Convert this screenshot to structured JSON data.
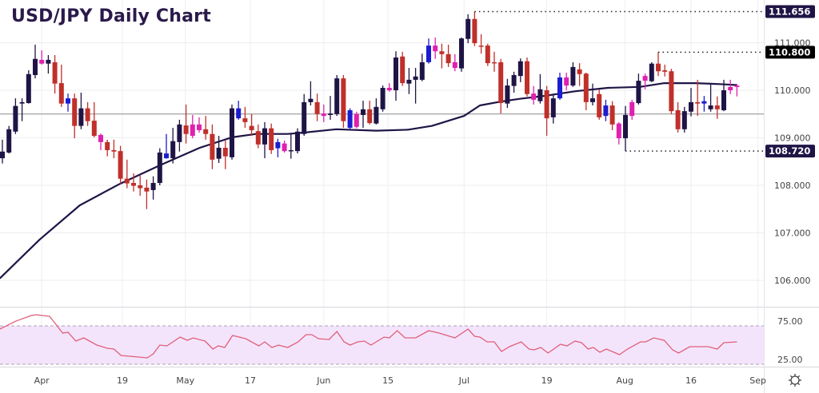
{
  "title": "USD/JPY Daily Chart",
  "settings_icon": "gear-icon",
  "colors": {
    "up": "#1f1446",
    "down": "#c0302a",
    "pink": "#e020b0",
    "blue": "#1c1cd0",
    "ma": "#1f1446",
    "rsi": "#e0607a",
    "rsi_band": "#f3e4fb"
  },
  "chart_data": {
    "type": "candlestick",
    "title": "USD/JPY Daily Chart",
    "ylim": [
      105.6,
      112.0
    ],
    "y_ticks": [
      "106.000",
      "107.000",
      "108.000",
      "109.000",
      "110.000",
      "111.000"
    ],
    "y_tick_values": [
      106,
      107,
      108,
      109,
      110,
      111
    ],
    "reference_line": 109.5,
    "x_ticks": [
      {
        "label": "Apr",
        "i": 6
      },
      {
        "label": "19",
        "i": 18.3
      },
      {
        "label": "May",
        "i": 27.9
      },
      {
        "label": "17",
        "i": 37.8
      },
      {
        "label": "Jun",
        "i": 49
      },
      {
        "label": "15",
        "i": 58.8
      },
      {
        "label": "Jul",
        "i": 70.4
      },
      {
        "label": "19",
        "i": 83
      },
      {
        "label": "Aug",
        "i": 94.9
      },
      {
        "label": "16",
        "i": 105
      },
      {
        "label": "Sep",
        "i": 115.2
      }
    ],
    "levels": [
      {
        "label": "111.656",
        "value": 111.656,
        "from_i": 72,
        "style": "dark"
      },
      {
        "label": "110.800",
        "value": 110.8,
        "from_i": 100,
        "style": "black"
      },
      {
        "label": "108.720",
        "value": 108.72,
        "from_i": 95,
        "style": "dark"
      }
    ],
    "candles_fields": [
      "open",
      "high",
      "low",
      "close",
      "color"
    ],
    "candles": [
      [
        108.57,
        108.96,
        108.46,
        108.71,
        "d"
      ],
      [
        108.69,
        109.25,
        108.67,
        109.18,
        "d"
      ],
      [
        109.13,
        109.83,
        109.08,
        109.67,
        "d"
      ],
      [
        109.72,
        109.83,
        109.35,
        109.75,
        "d"
      ],
      [
        109.73,
        110.42,
        109.72,
        110.34,
        "d"
      ],
      [
        110.32,
        110.96,
        110.25,
        110.66,
        "d"
      ],
      [
        110.64,
        110.84,
        110.54,
        110.56,
        "p"
      ],
      [
        110.56,
        110.74,
        110.35,
        110.64,
        "d"
      ],
      [
        110.59,
        110.74,
        109.93,
        110.14,
        "r"
      ],
      [
        110.15,
        110.54,
        109.65,
        109.72,
        "r"
      ],
      [
        109.72,
        109.93,
        109.55,
        109.83,
        "b"
      ],
      [
        109.83,
        109.93,
        108.99,
        109.25,
        "r"
      ],
      [
        109.25,
        109.95,
        109.18,
        109.62,
        "d"
      ],
      [
        109.62,
        109.75,
        109.25,
        109.35,
        "r"
      ],
      [
        109.36,
        109.75,
        109.01,
        109.04,
        "r"
      ],
      [
        109.06,
        109.09,
        108.74,
        108.91,
        "p"
      ],
      [
        108.91,
        108.96,
        108.61,
        108.74,
        "r"
      ],
      [
        108.74,
        108.96,
        108.57,
        108.71,
        "r"
      ],
      [
        108.72,
        108.83,
        108.02,
        108.14,
        "r"
      ],
      [
        108.14,
        108.54,
        107.94,
        108.04,
        "r"
      ],
      [
        108.05,
        108.25,
        107.87,
        107.99,
        "r"
      ],
      [
        108.0,
        108.22,
        107.78,
        107.94,
        "r"
      ],
      [
        107.95,
        108.12,
        107.5,
        107.87,
        "r"
      ],
      [
        107.9,
        108.19,
        107.7,
        108.05,
        "d"
      ],
      [
        108.05,
        108.78,
        108.0,
        108.69,
        "d"
      ],
      [
        108.57,
        109.08,
        108.56,
        108.67,
        "b"
      ],
      [
        108.57,
        109.21,
        108.46,
        108.93,
        "d"
      ],
      [
        108.91,
        109.38,
        108.71,
        109.28,
        "d"
      ],
      [
        109.26,
        109.7,
        108.88,
        109.08,
        "r"
      ],
      [
        109.28,
        109.48,
        108.99,
        109.04,
        "p"
      ],
      [
        109.28,
        109.43,
        109.11,
        109.16,
        "p"
      ],
      [
        109.18,
        109.46,
        108.96,
        109.08,
        "r"
      ],
      [
        109.08,
        109.28,
        108.34,
        108.54,
        "r"
      ],
      [
        108.56,
        109.04,
        108.47,
        108.79,
        "d"
      ],
      [
        108.79,
        108.94,
        108.34,
        108.61,
        "r"
      ],
      [
        108.59,
        109.7,
        108.54,
        109.62,
        "d"
      ],
      [
        109.41,
        109.78,
        109.38,
        109.62,
        "b"
      ],
      [
        109.41,
        109.65,
        109.21,
        109.33,
        "r"
      ],
      [
        109.25,
        109.5,
        109.04,
        109.16,
        "r"
      ],
      [
        109.14,
        109.28,
        108.78,
        108.86,
        "r"
      ],
      [
        108.86,
        109.33,
        108.57,
        109.2,
        "d"
      ],
      [
        109.2,
        109.3,
        108.66,
        108.74,
        "r"
      ],
      [
        108.78,
        108.98,
        108.59,
        108.91,
        "b"
      ],
      [
        108.88,
        108.94,
        108.69,
        108.72,
        "p"
      ],
      [
        108.72,
        109.08,
        108.56,
        108.74,
        "d"
      ],
      [
        108.72,
        109.2,
        108.67,
        109.13,
        "d"
      ],
      [
        109.08,
        109.92,
        109.04,
        109.75,
        "d"
      ],
      [
        109.75,
        110.19,
        109.68,
        109.82,
        "d"
      ],
      [
        109.75,
        109.93,
        109.35,
        109.5,
        "r"
      ],
      [
        109.51,
        109.7,
        109.33,
        109.46,
        "p"
      ],
      [
        109.48,
        109.88,
        109.38,
        109.51,
        "d"
      ],
      [
        109.5,
        110.32,
        109.46,
        110.25,
        "d"
      ],
      [
        110.25,
        110.32,
        109.21,
        109.35,
        "r"
      ],
      [
        109.21,
        109.62,
        109.18,
        109.58,
        "b"
      ],
      [
        109.5,
        109.55,
        109.2,
        109.23,
        "p"
      ],
      [
        109.48,
        109.78,
        109.21,
        109.6,
        "d"
      ],
      [
        109.6,
        109.78,
        109.28,
        109.31,
        "r"
      ],
      [
        109.3,
        109.83,
        109.28,
        109.65,
        "d"
      ],
      [
        109.6,
        110.1,
        109.55,
        110.05,
        "d"
      ],
      [
        110.05,
        110.15,
        109.97,
        110.0,
        "p"
      ],
      [
        110.0,
        110.82,
        109.78,
        110.69,
        "d"
      ],
      [
        110.71,
        110.81,
        110.09,
        110.15,
        "r"
      ],
      [
        110.14,
        110.47,
        109.92,
        110.22,
        "d"
      ],
      [
        110.22,
        110.47,
        109.72,
        110.29,
        "d"
      ],
      [
        110.22,
        110.77,
        110.19,
        110.59,
        "d"
      ],
      [
        110.59,
        111.09,
        110.56,
        110.94,
        "b"
      ],
      [
        110.94,
        111.11,
        110.66,
        110.82,
        "p"
      ],
      [
        110.82,
        110.98,
        110.46,
        110.76,
        "r"
      ],
      [
        110.76,
        110.96,
        110.49,
        110.57,
        "r"
      ],
      [
        110.59,
        110.76,
        110.4,
        110.47,
        "p"
      ],
      [
        110.46,
        111.11,
        110.39,
        111.09,
        "d"
      ],
      [
        111.08,
        111.6,
        110.99,
        111.5,
        "d"
      ],
      [
        111.5,
        111.656,
        110.93,
        110.99,
        "r"
      ],
      [
        110.94,
        111.18,
        110.77,
        110.93,
        "r"
      ],
      [
        110.94,
        110.98,
        110.51,
        110.57,
        "r"
      ],
      [
        110.59,
        110.81,
        110.39,
        110.57,
        "r"
      ],
      [
        110.59,
        110.66,
        109.51,
        109.73,
        "r"
      ],
      [
        109.72,
        110.24,
        109.63,
        110.1,
        "d"
      ],
      [
        110.09,
        110.39,
        109.95,
        110.32,
        "d"
      ],
      [
        110.3,
        110.67,
        110.17,
        110.61,
        "d"
      ],
      [
        110.61,
        110.69,
        109.87,
        109.92,
        "r"
      ],
      [
        109.93,
        110.09,
        109.7,
        109.8,
        "p"
      ],
      [
        109.77,
        110.34,
        109.72,
        110.02,
        "d"
      ],
      [
        110.0,
        110.09,
        109.04,
        109.41,
        "r"
      ],
      [
        109.43,
        109.92,
        109.3,
        109.83,
        "d"
      ],
      [
        109.83,
        110.37,
        109.8,
        110.27,
        "b"
      ],
      [
        110.27,
        110.37,
        110.0,
        110.1,
        "p"
      ],
      [
        110.1,
        110.59,
        110.07,
        110.49,
        "d"
      ],
      [
        110.44,
        110.57,
        110.09,
        110.34,
        "r"
      ],
      [
        110.35,
        110.37,
        109.58,
        109.75,
        "r"
      ],
      [
        109.75,
        110.14,
        109.68,
        109.83,
        "d"
      ],
      [
        109.92,
        110.02,
        109.38,
        109.43,
        "r"
      ],
      [
        109.46,
        109.8,
        109.35,
        109.68,
        "b"
      ],
      [
        109.68,
        109.77,
        109.16,
        109.28,
        "r"
      ],
      [
        109.3,
        109.33,
        108.86,
        108.99,
        "p"
      ],
      [
        108.99,
        109.67,
        108.72,
        109.48,
        "d"
      ],
      [
        109.75,
        109.8,
        109.38,
        109.46,
        "p"
      ],
      [
        109.73,
        110.35,
        109.7,
        110.2,
        "d"
      ],
      [
        110.3,
        110.35,
        110.02,
        110.2,
        "p"
      ],
      [
        110.19,
        110.59,
        110.17,
        110.56,
        "d"
      ],
      [
        110.56,
        110.8,
        110.3,
        110.4,
        "r"
      ],
      [
        110.42,
        110.54,
        110.29,
        110.39,
        "r"
      ],
      [
        110.4,
        110.45,
        109.5,
        109.56,
        "r"
      ],
      [
        109.58,
        109.75,
        109.11,
        109.18,
        "r"
      ],
      [
        109.18,
        109.65,
        109.11,
        109.56,
        "d"
      ],
      [
        109.55,
        110.05,
        109.45,
        109.75,
        "d"
      ],
      [
        109.75,
        110.22,
        109.46,
        109.72,
        "r"
      ],
      [
        109.72,
        109.88,
        109.55,
        109.77,
        "b"
      ],
      [
        109.6,
        110.14,
        109.55,
        109.68,
        "d"
      ],
      [
        109.68,
        109.87,
        109.4,
        109.6,
        "r"
      ],
      [
        109.58,
        110.22,
        109.56,
        110.0,
        "d"
      ],
      [
        110.07,
        110.22,
        109.92,
        110.0,
        "p"
      ],
      [
        110.1,
        110.13,
        109.87,
        110.07,
        "p"
      ]
    ],
    "moving_average": [
      [
        -0.4,
        106.04
      ],
      [
        5.7,
        106.86
      ],
      [
        11.8,
        107.58
      ],
      [
        17.9,
        108.03
      ],
      [
        24,
        108.42
      ],
      [
        30.1,
        108.79
      ],
      [
        35,
        109.01
      ],
      [
        38.7,
        109.08
      ],
      [
        43.5,
        109.08
      ],
      [
        46,
        109.11
      ],
      [
        50.9,
        109.18
      ],
      [
        57,
        109.15
      ],
      [
        61.8,
        109.17
      ],
      [
        65.5,
        109.25
      ],
      [
        70.4,
        109.46
      ],
      [
        72.8,
        109.68
      ],
      [
        75.9,
        109.76
      ],
      [
        78.9,
        109.82
      ],
      [
        82.6,
        109.88
      ],
      [
        87.4,
        109.98
      ],
      [
        92.3,
        110.05
      ],
      [
        97.2,
        110.07
      ],
      [
        100.9,
        110.15
      ],
      [
        105.7,
        110.15
      ],
      [
        109.4,
        110.13
      ],
      [
        112,
        110.11
      ]
    ],
    "rsi": {
      "ylim": [
        20,
        95
      ],
      "ticks": [
        "75.00",
        "25.00"
      ],
      "tick_values": [
        75,
        25
      ],
      "points": [
        [
          -0.4,
          70.8
        ],
        [
          2.0,
          81
        ],
        [
          4.4,
          88.5
        ],
        [
          5.2,
          89.6
        ],
        [
          7.2,
          87.5
        ],
        [
          9.2,
          65.6
        ],
        [
          10,
          66.7
        ],
        [
          11.2,
          55.2
        ],
        [
          12.4,
          59.4
        ],
        [
          14.4,
          50
        ],
        [
          16,
          45.8
        ],
        [
          17,
          44.8
        ],
        [
          18.1,
          36.5
        ],
        [
          22.1,
          33.3
        ],
        [
          23,
          38.5
        ],
        [
          24,
          50
        ],
        [
          25.1,
          49
        ],
        [
          27.1,
          60.4
        ],
        [
          28.2,
          56.3
        ],
        [
          29.1,
          59.4
        ],
        [
          30.9,
          55.2
        ],
        [
          32.1,
          44.8
        ],
        [
          32.9,
          49
        ],
        [
          33.9,
          46.9
        ],
        [
          35.1,
          62.5
        ],
        [
          37.1,
          58.3
        ],
        [
          39.1,
          49
        ],
        [
          40,
          54.2
        ],
        [
          41.1,
          46.9
        ],
        [
          42.1,
          50
        ],
        [
          43.5,
          46.9
        ],
        [
          45.1,
          54.2
        ],
        [
          46.3,
          63.5
        ],
        [
          47.2,
          63.5
        ],
        [
          48.2,
          58.3
        ],
        [
          49.8,
          57.3
        ],
        [
          51,
          67.7
        ],
        [
          52.1,
          54.2
        ],
        [
          53,
          50
        ],
        [
          54.2,
          54.2
        ],
        [
          55.2,
          55.2
        ],
        [
          56.2,
          50
        ],
        [
          58.2,
          60.4
        ],
        [
          59,
          59.4
        ],
        [
          60.2,
          68.8
        ],
        [
          61.4,
          59.4
        ],
        [
          63,
          59.4
        ],
        [
          65,
          68.8
        ],
        [
          66.6,
          65.6
        ],
        [
          69,
          59.4
        ],
        [
          71,
          70.8
        ],
        [
          72,
          61.5
        ],
        [
          72.8,
          60.4
        ],
        [
          73.9,
          54.2
        ],
        [
          75,
          54.2
        ],
        [
          76.1,
          41.7
        ],
        [
          77.3,
          47.9
        ],
        [
          79.1,
          54.2
        ],
        [
          80.3,
          44.8
        ],
        [
          81.1,
          43.8
        ],
        [
          82.1,
          46.9
        ],
        [
          83.2,
          39.6
        ],
        [
          85.1,
          51
        ],
        [
          86.1,
          49
        ],
        [
          87.3,
          55.2
        ],
        [
          88.3,
          53.1
        ],
        [
          89.3,
          44.8
        ],
        [
          90.1,
          46.9
        ],
        [
          91.1,
          40.6
        ],
        [
          92.1,
          44.8
        ],
        [
          94.1,
          37.5
        ],
        [
          95.3,
          44.8
        ],
        [
          97.3,
          54.2
        ],
        [
          98.1,
          54.2
        ],
        [
          99.3,
          59.4
        ],
        [
          100.9,
          56.3
        ],
        [
          102.2,
          43.8
        ],
        [
          103.1,
          39.6
        ],
        [
          104.8,
          47.9
        ],
        [
          107.6,
          47.9
        ],
        [
          109,
          44.8
        ],
        [
          110,
          53.1
        ],
        [
          112,
          54.2
        ]
      ]
    }
  }
}
